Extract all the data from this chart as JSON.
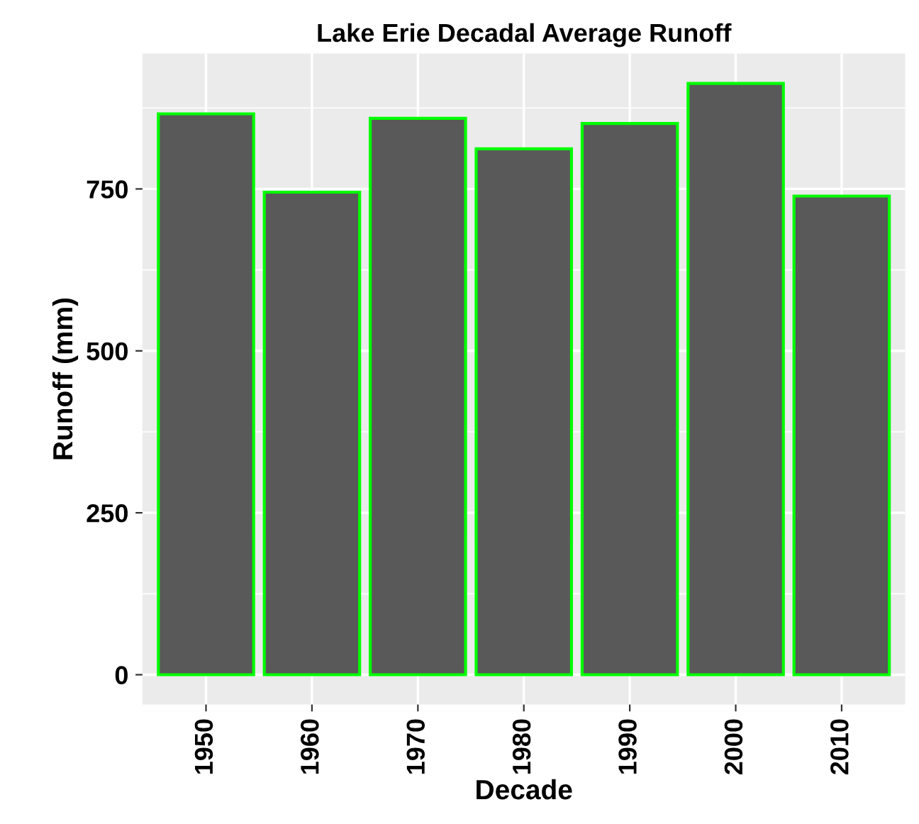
{
  "chart_data": {
    "type": "bar",
    "title": "Lake Erie Decadal Average Runoff",
    "xlabel": "Decade",
    "ylabel": "Runoff (mm)",
    "categories": [
      "1950",
      "1960",
      "1970",
      "1980",
      "1990",
      "2000",
      "2010"
    ],
    "values": [
      866,
      745,
      859,
      812,
      851,
      913,
      739
    ],
    "color": "#595959",
    "ylim": [
      -46,
      959
    ],
    "yticks": [
      0,
      250,
      500,
      750
    ],
    "grid": true
  }
}
